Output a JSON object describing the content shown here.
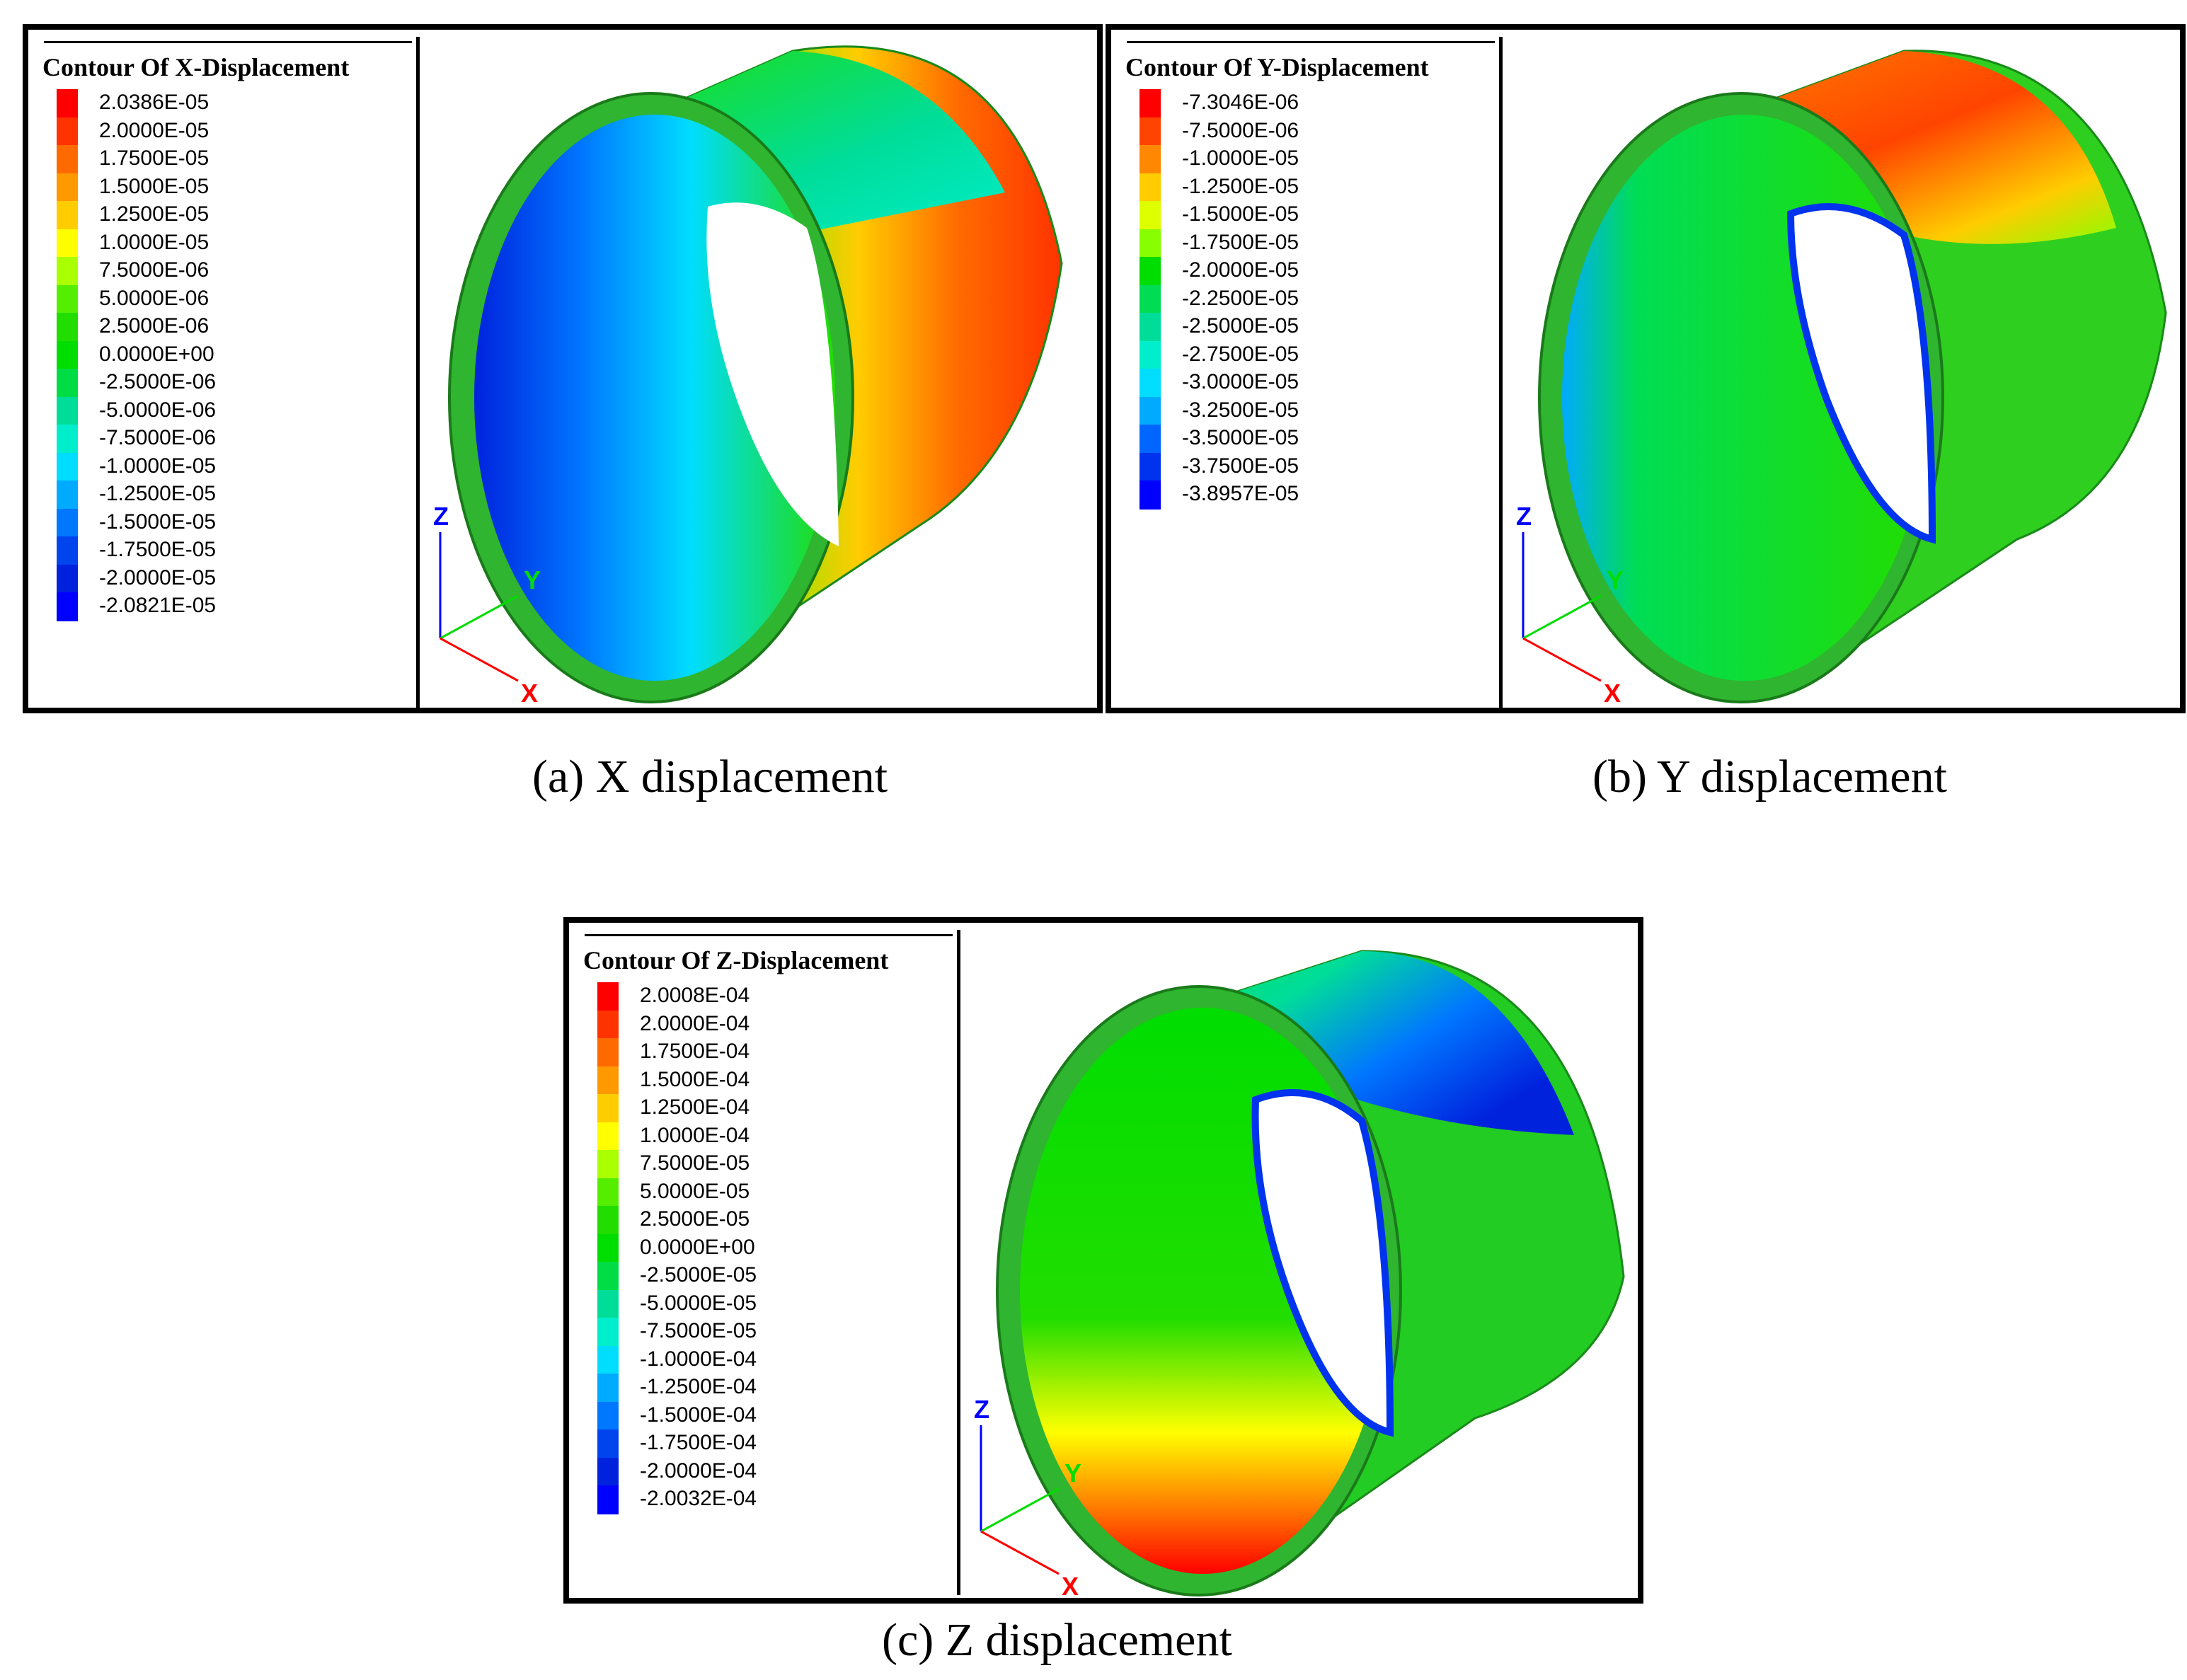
{
  "figures": [
    {
      "id": "a",
      "legend_title": "Contour Of X-Displacement",
      "levels": [
        "2.0386E-05",
        "2.0000E-05",
        "1.7500E-05",
        "1.5000E-05",
        "1.2500E-05",
        "1.0000E-05",
        "7.5000E-06",
        "5.0000E-06",
        "2.5000E-06",
        "0.0000E+00",
        "-2.5000E-06",
        "-5.0000E-06",
        "-7.5000E-06",
        "-1.0000E-05",
        "-1.2500E-05",
        "-1.5000E-05",
        "-1.7500E-05",
        "-2.0000E-05",
        "-2.0821E-05"
      ],
      "colors": [
        "#ff0000",
        "#ff3300",
        "#ff6a00",
        "#ff9900",
        "#ffcc00",
        "#ffff00",
        "#aaff00",
        "#55ee00",
        "#22dd00",
        "#00dd00",
        "#00dd44",
        "#00dd99",
        "#00eecc",
        "#00ddff",
        "#00aaff",
        "#0077ff",
        "#0044ee",
        "#0022dd",
        "#0000ff"
      ],
      "caption": "(a) X displacement",
      "axes": {
        "z": "Z",
        "y": "Y",
        "x": "X"
      }
    },
    {
      "id": "b",
      "legend_title": "Contour Of Y-Displacement",
      "levels": [
        "-7.3046E-06",
        "-7.5000E-06",
        "-1.0000E-05",
        "-1.2500E-05",
        "-1.5000E-05",
        "-1.7500E-05",
        "-2.0000E-05",
        "-2.2500E-05",
        "-2.5000E-05",
        "-2.7500E-05",
        "-3.0000E-05",
        "-3.2500E-05",
        "-3.5000E-05",
        "-3.7500E-05",
        "-3.8957E-05"
      ],
      "colors": [
        "#ff0000",
        "#ff4400",
        "#ff8800",
        "#ffcc00",
        "#ddff00",
        "#88ff00",
        "#00dd00",
        "#00dd55",
        "#00dd99",
        "#00eecc",
        "#00ddff",
        "#00aaff",
        "#0066ff",
        "#0033ee",
        "#0000ff"
      ],
      "caption": "(b) Y displacement",
      "axes": {
        "z": "Z",
        "y": "Y",
        "x": "X"
      }
    },
    {
      "id": "c",
      "legend_title": "Contour Of Z-Displacement",
      "levels": [
        "2.0008E-04",
        "2.0000E-04",
        "1.7500E-04",
        "1.5000E-04",
        "1.2500E-04",
        "1.0000E-04",
        "7.5000E-05",
        "5.0000E-05",
        "2.5000E-05",
        "0.0000E+00",
        "-2.5000E-05",
        "-5.0000E-05",
        "-7.5000E-05",
        "-1.0000E-04",
        "-1.2500E-04",
        "-1.5000E-04",
        "-1.7500E-04",
        "-2.0000E-04",
        "-2.0032E-04"
      ],
      "colors": [
        "#ff0000",
        "#ff3300",
        "#ff6a00",
        "#ff9900",
        "#ffcc00",
        "#ffff00",
        "#aaff00",
        "#55ee00",
        "#22dd00",
        "#00dd00",
        "#00dd44",
        "#00dd99",
        "#00eecc",
        "#00ddff",
        "#00aaff",
        "#0077ff",
        "#0044ee",
        "#0022dd",
        "#0000ff"
      ],
      "caption": "(c) Z displacement",
      "axes": {
        "z": "Z",
        "y": "Y",
        "x": "X"
      }
    }
  ]
}
